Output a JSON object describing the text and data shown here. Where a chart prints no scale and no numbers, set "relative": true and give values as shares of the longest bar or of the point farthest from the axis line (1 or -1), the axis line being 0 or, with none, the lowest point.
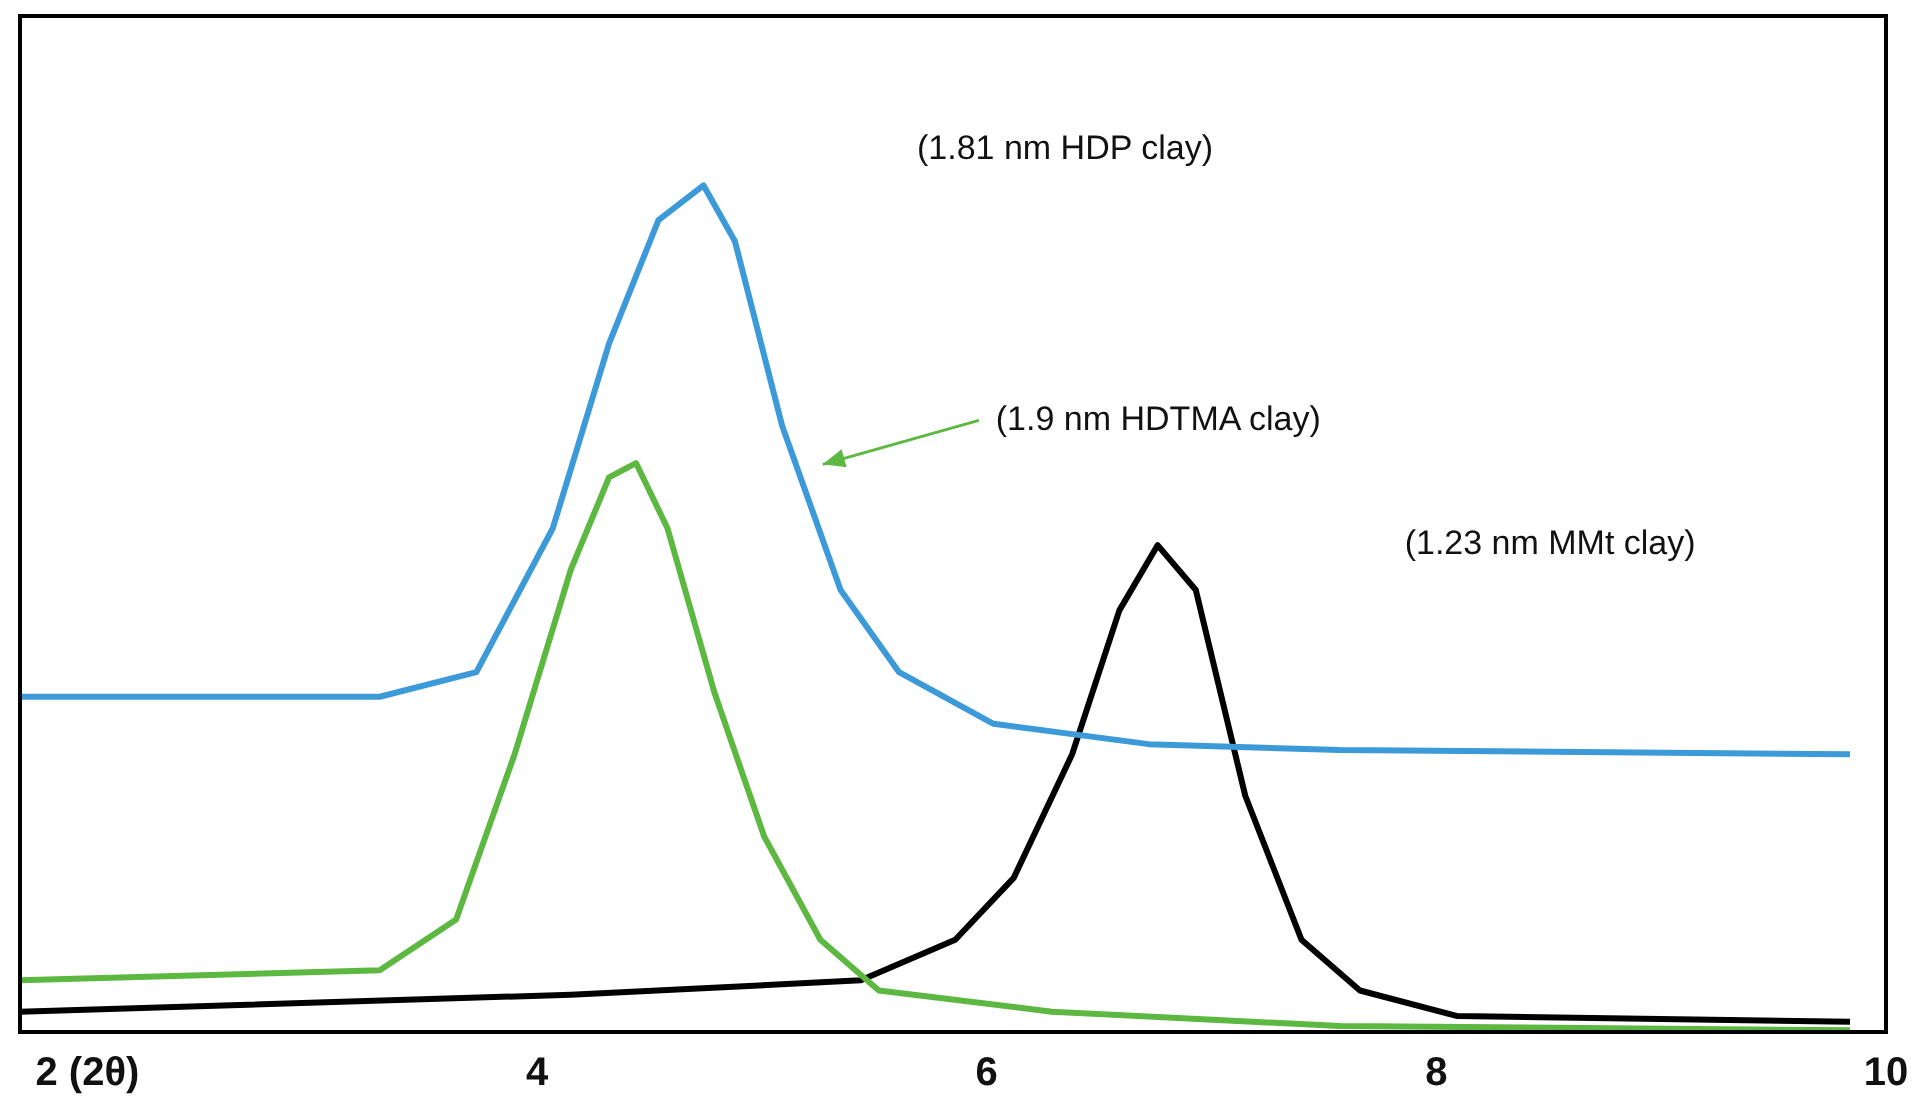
{
  "chart_data": {
    "type": "line",
    "relative": true,
    "xlim": [
      1.7,
      10
    ],
    "xticks": [
      {
        "value": 2,
        "label": "2 (2θ)"
      },
      4,
      6,
      8,
      10
    ],
    "grid": false,
    "legend": false,
    "marker": "none",
    "line_style": "solid",
    "series": [
      {
        "color": "#3d9ad9",
        "x": [
          1.7,
          3.3,
          3.73,
          4.07,
          4.32,
          4.54,
          4.74,
          4.88,
          5.09,
          5.35,
          5.61,
          6.03,
          6.72,
          7.57,
          9.84
        ],
        "values": [
          0.396,
          0.396,
          0.425,
          0.595,
          0.813,
          0.959,
          1,
          0.934,
          0.716,
          0.522,
          0.425,
          0.364,
          0.34,
          0.333,
          0.328
        ]
      },
      {
        "color": "#5cb840",
        "x": [
          1.7,
          3.3,
          3.64,
          3.9,
          4.15,
          4.32,
          4.44,
          4.58,
          4.79,
          5.01,
          5.26,
          5.52,
          6.29,
          7.57,
          9.84
        ],
        "values": [
          0.061,
          0.073,
          0.133,
          0.328,
          0.546,
          0.655,
          0.672,
          0.595,
          0.4,
          0.231,
          0.109,
          0.049,
          0.024,
          0.007,
          0.002
        ]
      },
      {
        "color": "#000000",
        "x": [
          1.7,
          4.15,
          5.44,
          5.86,
          6.12,
          6.38,
          6.59,
          6.76,
          6.93,
          7.15,
          7.4,
          7.66,
          8.09,
          9.84
        ],
        "values": [
          0.024,
          0.044,
          0.061,
          0.109,
          0.182,
          0.328,
          0.498,
          0.575,
          0.522,
          0.279,
          0.109,
          0.049,
          0.019,
          0.012
        ]
      }
    ],
    "annotations": [
      "(1.81 nm HDP clay)",
      "(1.9 nm HDTMA clay)",
      "(1.23 nm MMt clay)"
    ]
  }
}
